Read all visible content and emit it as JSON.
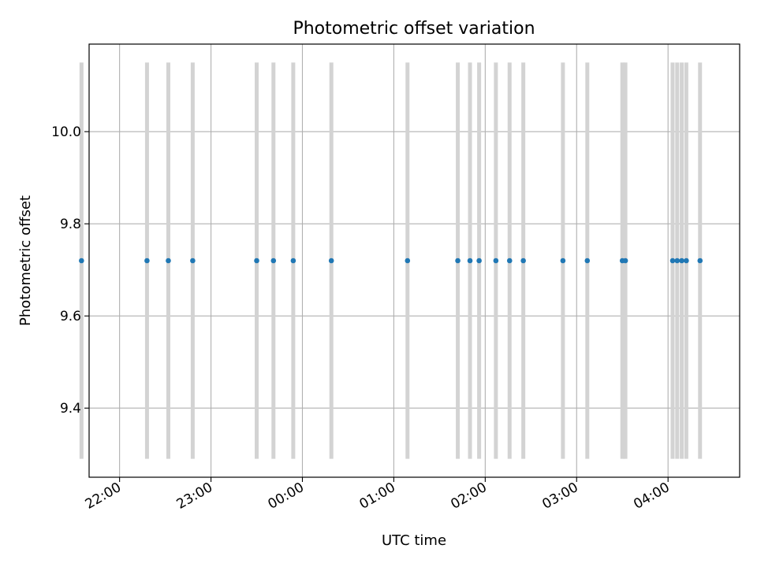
{
  "chart_data": {
    "type": "scatter",
    "title": "Photometric offset variation",
    "xlabel": "UTC time",
    "ylabel": "Photometric offset",
    "x_axis_type": "time",
    "xlim": [
      "21:40",
      "04:47"
    ],
    "ylim": [
      9.25,
      10.19
    ],
    "xticks": [
      "22:00",
      "23:00",
      "00:00",
      "01:00",
      "02:00",
      "03:00",
      "04:00"
    ],
    "yticks": [
      "9.4",
      "9.6",
      "9.8",
      "10.0"
    ],
    "grid": true,
    "legend": "none",
    "colors": {
      "points": "#1f77b4",
      "bars": "#d3d3d3",
      "grid": "#b0b0b0"
    },
    "points": [
      {
        "x": "21:35",
        "y": 9.72
      },
      {
        "x": "22:18",
        "y": 9.72
      },
      {
        "x": "22:32",
        "y": 9.72
      },
      {
        "x": "22:48",
        "y": 9.72
      },
      {
        "x": "23:30",
        "y": 9.72
      },
      {
        "x": "23:41",
        "y": 9.72
      },
      {
        "x": "23:54",
        "y": 9.72
      },
      {
        "x": "00:19",
        "y": 9.72
      },
      {
        "x": "01:09",
        "y": 9.72
      },
      {
        "x": "01:42",
        "y": 9.72
      },
      {
        "x": "01:50",
        "y": 9.72
      },
      {
        "x": "01:56",
        "y": 9.72
      },
      {
        "x": "02:07",
        "y": 9.72
      },
      {
        "x": "02:16",
        "y": 9.72
      },
      {
        "x": "02:25",
        "y": 9.72
      },
      {
        "x": "02:51",
        "y": 9.72
      },
      {
        "x": "03:07",
        "y": 9.72
      },
      {
        "x": "03:30",
        "y": 9.72
      },
      {
        "x": "03:32",
        "y": 9.72
      },
      {
        "x": "04:03",
        "y": 9.72
      },
      {
        "x": "04:06",
        "y": 9.72
      },
      {
        "x": "04:09",
        "y": 9.72
      },
      {
        "x": "04:12",
        "y": 9.72
      },
      {
        "x": "04:21",
        "y": 9.72
      }
    ],
    "error_bars": {
      "low": 9.29,
      "high": 10.15
    }
  }
}
